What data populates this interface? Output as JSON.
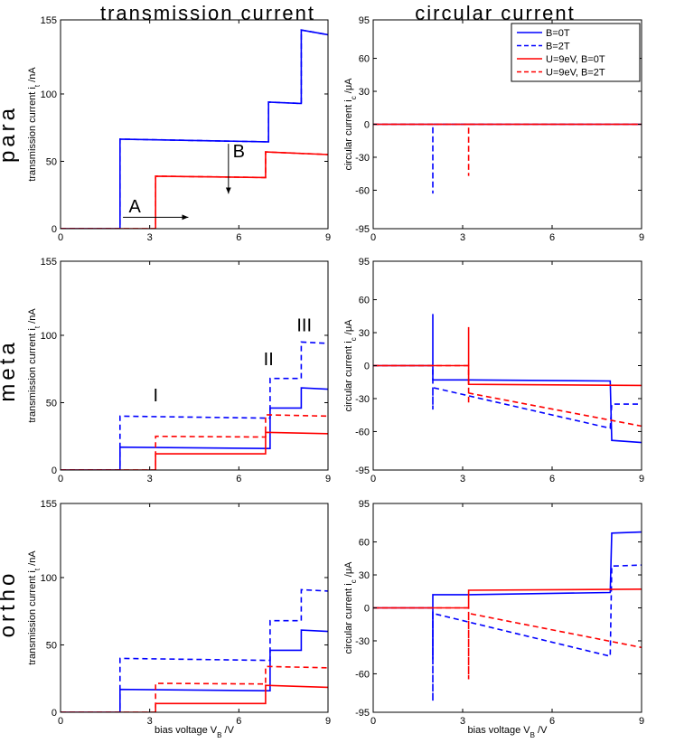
{
  "figure": {
    "column_titles": [
      "transmission current",
      "circular current"
    ],
    "row_titles": [
      "para",
      "meta",
      "ortho"
    ],
    "xlabel": "bias voltage V_B /V"
  },
  "legend": {
    "placement": "top-right",
    "entries": [
      {
        "label": "B=0T",
        "color": "#0000ff",
        "dash": "solid"
      },
      {
        "label": "B=2T",
        "color": "#0000ff",
        "dash": "dashed"
      },
      {
        "label": "U=9eV, B=0T",
        "color": "#ff0000",
        "dash": "solid"
      },
      {
        "label": "U=9eV, B=2T",
        "color": "#ff0000",
        "dash": "dashed"
      }
    ]
  },
  "chart_data": [
    {
      "id": "para-transmission",
      "type": "line",
      "ylabel": "transmission current i_t /nA",
      "xlim": [
        0,
        9
      ],
      "ylim": [
        0,
        155
      ],
      "xticks": [
        0,
        3,
        6,
        9
      ],
      "yticks": [
        0,
        50,
        100,
        155
      ],
      "series": [
        {
          "style": "b-",
          "x": [
            0,
            1.99,
            2.0,
            2.0,
            6.95,
            7.0,
            7.0,
            8.05,
            8.1,
            8.1,
            9
          ],
          "y": [
            0,
            0,
            0,
            66.5,
            64.5,
            64.5,
            94,
            93,
            93,
            147.5,
            144
          ]
        },
        {
          "style": "b--",
          "x": [
            0,
            1.99,
            2.0,
            2.0,
            6.95,
            7.0,
            7.0,
            8.05,
            8.1,
            8.1,
            9
          ],
          "y": [
            0,
            0,
            0,
            66.5,
            64.5,
            64.5,
            94,
            93,
            93,
            147.5,
            144
          ]
        },
        {
          "style": "r-",
          "x": [
            0,
            3.19,
            3.2,
            3.2,
            6.85,
            6.9,
            6.9,
            9
          ],
          "y": [
            0,
            0,
            0,
            39,
            38,
            38,
            57,
            55
          ]
        },
        {
          "style": "r--",
          "x": [
            0,
            3.19,
            3.2,
            3.2,
            6.85,
            6.9,
            6.9,
            9
          ],
          "y": [
            0,
            0,
            0,
            39,
            38,
            38,
            57,
            55
          ]
        }
      ],
      "annotations": [
        {
          "text": "A",
          "x": 2.5,
          "y": 12
        },
        {
          "text": "B",
          "x": 6.0,
          "y": 53
        }
      ]
    },
    {
      "id": "para-circular",
      "type": "line",
      "ylabel": "circular current i_c /μA",
      "xlim": [
        0,
        9
      ],
      "ylim": [
        -95,
        95
      ],
      "xticks": [
        0,
        3,
        6,
        9
      ],
      "yticks": [
        -95,
        -60,
        -30,
        0,
        30,
        60,
        95
      ],
      "series": [
        {
          "style": "b-",
          "x": [
            0,
            9
          ],
          "y": [
            0,
            0
          ]
        },
        {
          "style": "b--",
          "x": [
            0,
            2.0,
            2.0,
            2.0,
            9
          ],
          "y": [
            0,
            0,
            -63,
            0,
            0
          ]
        },
        {
          "style": "r-",
          "x": [
            0,
            9
          ],
          "y": [
            0,
            0
          ]
        },
        {
          "style": "r--",
          "x": [
            0,
            3.2,
            3.2,
            3.2,
            9
          ],
          "y": [
            0,
            0,
            -47,
            0,
            0
          ]
        }
      ]
    },
    {
      "id": "meta-transmission",
      "type": "line",
      "ylabel": "transmission current i_t /nA",
      "xlim": [
        0,
        9
      ],
      "ylim": [
        0,
        155
      ],
      "xticks": [
        0,
        3,
        6,
        9
      ],
      "yticks": [
        0,
        50,
        100,
        155
      ],
      "series": [
        {
          "style": "b-",
          "x": [
            0,
            1.99,
            2.0,
            2.0,
            7.0,
            7.05,
            7.05,
            8.05,
            8.1,
            8.1,
            9
          ],
          "y": [
            0,
            0,
            0,
            17,
            16,
            16,
            46,
            46,
            46,
            61,
            60
          ]
        },
        {
          "style": "b--",
          "x": [
            0,
            1.99,
            2.0,
            2.0,
            7.0,
            7.05,
            7.05,
            8.05,
            8.1,
            8.1,
            9
          ],
          "y": [
            0,
            0,
            0,
            40,
            38.5,
            38.5,
            68,
            68,
            68,
            95,
            94
          ]
        },
        {
          "style": "r-",
          "x": [
            0,
            3.19,
            3.2,
            3.2,
            6.85,
            6.9,
            6.9,
            9
          ],
          "y": [
            0,
            0,
            0,
            12,
            12,
            12,
            28,
            27
          ]
        },
        {
          "style": "r--",
          "x": [
            0,
            3.19,
            3.2,
            3.2,
            6.85,
            6.9,
            6.9,
            9
          ],
          "y": [
            0,
            0,
            0,
            25,
            24.5,
            24.5,
            41,
            40
          ]
        }
      ],
      "annotations": [
        {
          "text": "I",
          "x": 3.2,
          "y": 51
        },
        {
          "text": "II",
          "x": 7.0,
          "y": 78
        },
        {
          "text": "III",
          "x": 8.2,
          "y": 103
        }
      ]
    },
    {
      "id": "meta-circular",
      "type": "line",
      "ylabel": "circular current i_c /μA",
      "xlim": [
        0,
        9
      ],
      "ylim": [
        -95,
        95
      ],
      "xticks": [
        0,
        3,
        6,
        9
      ],
      "yticks": [
        -95,
        -60,
        -30,
        0,
        30,
        60,
        95
      ],
      "series": [
        {
          "style": "b-",
          "x": [
            0,
            2.0,
            2.0,
            2.0,
            3.2,
            7.95,
            8.0,
            9
          ],
          "y": [
            0,
            0,
            47,
            -13,
            -13,
            -14,
            -68,
            -70
          ]
        },
        {
          "style": "b--",
          "x": [
            0,
            2.0,
            2.0,
            2.0,
            7.95,
            8.0,
            9
          ],
          "y": [
            0,
            0,
            -40,
            -20,
            -57,
            -35,
            -35
          ]
        },
        {
          "style": "r-",
          "x": [
            0,
            3.2,
            3.2,
            3.2,
            9
          ],
          "y": [
            0,
            0,
            35,
            -17,
            -18
          ]
        },
        {
          "style": "r--",
          "x": [
            0,
            3.2,
            3.2,
            3.2,
            9
          ],
          "y": [
            0,
            0,
            -35,
            -25,
            -55
          ]
        }
      ]
    },
    {
      "id": "ortho-transmission",
      "type": "line",
      "ylabel": "transmission current i_t /nA",
      "xlim": [
        0,
        9
      ],
      "ylim": [
        0,
        155
      ],
      "xticks": [
        0,
        3,
        6,
        9
      ],
      "yticks": [
        0,
        50,
        100,
        155
      ],
      "series": [
        {
          "style": "b-",
          "x": [
            0,
            1.99,
            2.0,
            2.0,
            7.0,
            7.05,
            7.05,
            8.05,
            8.1,
            8.1,
            9
          ],
          "y": [
            0,
            0,
            0,
            17,
            16,
            16,
            46,
            46,
            46,
            61,
            60
          ]
        },
        {
          "style": "b--",
          "x": [
            0,
            1.99,
            2.0,
            2.0,
            7.0,
            7.05,
            7.05,
            8.05,
            8.1,
            8.1,
            9
          ],
          "y": [
            0,
            0,
            0,
            40,
            38.5,
            38.5,
            68,
            68,
            68,
            91,
            90
          ]
        },
        {
          "style": "r-",
          "x": [
            0,
            3.19,
            3.2,
            3.2,
            6.85,
            6.9,
            6.9,
            9
          ],
          "y": [
            0,
            0,
            0,
            6.5,
            6.5,
            6.5,
            20,
            18.5
          ]
        },
        {
          "style": "r--",
          "x": [
            0,
            3.19,
            3.2,
            3.2,
            6.85,
            6.9,
            6.9,
            9
          ],
          "y": [
            0,
            0,
            0,
            21.5,
            21,
            21,
            34,
            33
          ]
        }
      ]
    },
    {
      "id": "ortho-circular",
      "type": "line",
      "ylabel": "circular current i_c /μA",
      "xlim": [
        0,
        9
      ],
      "ylim": [
        -95,
        95
      ],
      "xticks": [
        0,
        3,
        6,
        9
      ],
      "yticks": [
        -95,
        -60,
        -30,
        0,
        30,
        60,
        95
      ],
      "xlabel": "bias voltage V_B /V",
      "series": [
        {
          "style": "b-",
          "x": [
            0,
            2.0,
            2.0,
            2.0,
            3.2,
            7.95,
            8.0,
            9
          ],
          "y": [
            0,
            0,
            -47,
            12,
            12,
            14,
            68,
            69
          ]
        },
        {
          "style": "b--",
          "x": [
            0,
            2.0,
            2.0,
            2.0,
            7.95,
            8.0,
            9
          ],
          "y": [
            0,
            0,
            -85,
            -5,
            -44,
            38,
            39
          ]
        },
        {
          "style": "r-",
          "x": [
            0,
            3.2,
            3.2,
            3.2,
            9
          ],
          "y": [
            0,
            0,
            -1,
            16,
            17
          ]
        },
        {
          "style": "r--",
          "x": [
            0,
            3.2,
            3.2,
            3.2,
            9
          ],
          "y": [
            0,
            0,
            -65,
            -5,
            -36
          ]
        }
      ]
    }
  ]
}
